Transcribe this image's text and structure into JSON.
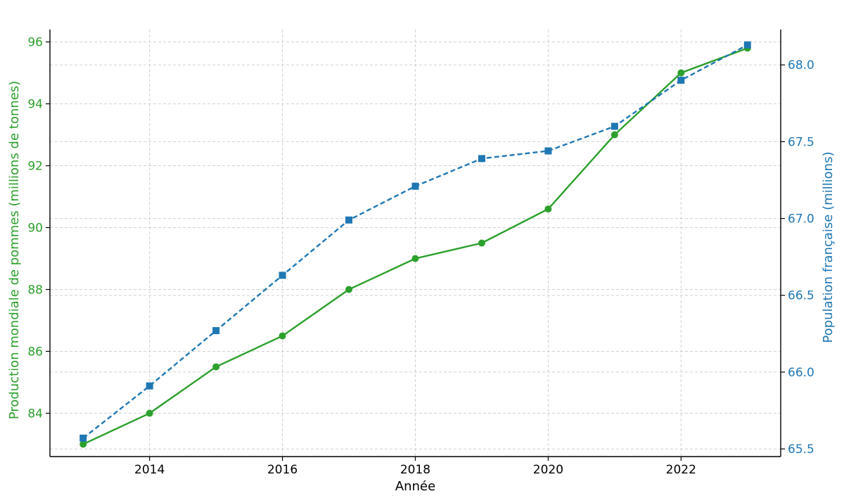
{
  "chart_data": {
    "type": "line",
    "xlabel": "Année",
    "x": [
      2013,
      2014,
      2015,
      2016,
      2017,
      2018,
      2019,
      2020,
      2021,
      2022,
      2023
    ],
    "x_ticks": [
      2014,
      2016,
      2018,
      2020,
      2022
    ],
    "x_tick_labels": [
      "2014",
      "2016",
      "2018",
      "2020",
      "2022"
    ],
    "xlim": [
      2012.5,
      2023.5
    ],
    "grid": true,
    "left_axis": {
      "label": "Production mondiale de pommes (millions de tonnes)",
      "ylim": [
        82.6,
        96.4
      ],
      "ticks": [
        84,
        86,
        88,
        90,
        92,
        94,
        96
      ],
      "tick_labels": [
        "84",
        "86",
        "88",
        "90",
        "92",
        "94",
        "96"
      ],
      "color": "#2ca02c"
    },
    "right_axis": {
      "label": "Population française (millions)",
      "ylim": [
        65.45,
        68.23
      ],
      "ticks": [
        65.5,
        66.0,
        66.5,
        67.0,
        67.5,
        68.0
      ],
      "tick_labels": [
        "65.5",
        "66.0",
        "66.5",
        "67.0",
        "67.5",
        "68.0"
      ],
      "color": "#1f77b4"
    },
    "series": [
      {
        "axis": "left",
        "color": "#2ca02c",
        "marker": "circle",
        "line_style": "solid",
        "values": [
          83.0,
          84.0,
          85.5,
          86.5,
          88.0,
          89.0,
          89.5,
          90.6,
          93.0,
          95.0,
          95.8
        ]
      },
      {
        "axis": "right",
        "color": "#1f77b4",
        "marker": "square",
        "line_style": "dashed",
        "values": [
          65.57,
          65.91,
          66.27,
          66.63,
          66.99,
          67.21,
          67.39,
          67.44,
          67.6,
          67.9,
          68.13
        ]
      }
    ]
  }
}
